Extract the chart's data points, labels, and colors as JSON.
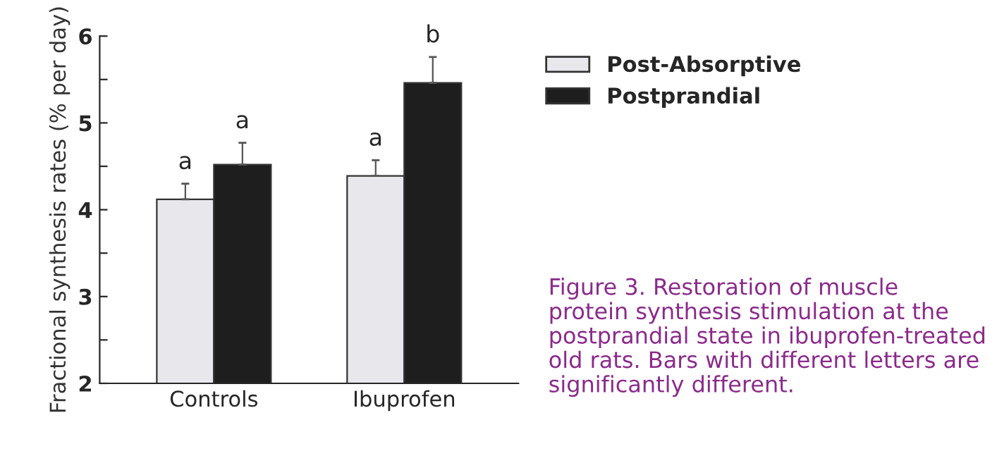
{
  "chart_data": {
    "type": "bar",
    "ylabel": "Fractional synthesis rates (% per day)",
    "categories": [
      "Controls",
      "Ibuprofen"
    ],
    "series": [
      {
        "name": "Post-Absorptive",
        "color": "#e8e8ec",
        "values": [
          4.12,
          4.39
        ],
        "errors": [
          [
            4.12,
            4.3
          ],
          [
            4.39,
            4.57
          ]
        ]
      },
      {
        "name": "Postprandial",
        "color": "#1e1e1e",
        "values": [
          4.52,
          5.46
        ],
        "errors": [
          [
            4.52,
            4.77
          ],
          [
            5.46,
            5.76
          ]
        ]
      }
    ],
    "ylim": [
      2,
      6
    ],
    "yticks": [
      2,
      {
        "value": 2.5,
        "label": null
      },
      3,
      {
        "value": 3.5,
        "label": null
      },
      4,
      {
        "value": 4.5,
        "label": null
      },
      5,
      {
        "value": 5.5,
        "label": null
      },
      6
    ],
    "grid": false,
    "legend": "top right",
    "annotations": [
      "a",
      "a",
      "a",
      "b",
      "Figure 3. Restoration of muscle\nprotein synthesis stimulation at the\npostprandial state in ibuprofen-treated\nold rats. Bars with different letters are\nsignificantly different."
    ]
  }
}
